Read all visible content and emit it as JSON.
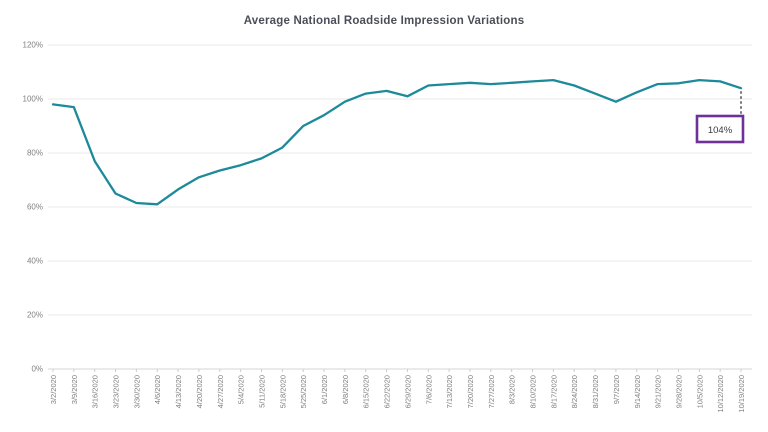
{
  "title": "Average National Roadside Impression Variations",
  "annotation": {
    "label": "104%"
  },
  "colors": {
    "line": "#1d8a9a",
    "grid": "#e9e9e9",
    "axis_line": "#d6d6d6",
    "tick": "#cccccc",
    "axis_text": "#808080",
    "title_text": "#4a4e57",
    "annotation_border": "#6d3198",
    "annotation_text": "#3a3a3a",
    "callout_line": "#4d4d4d",
    "background": "#ffffff"
  },
  "chart_data": {
    "type": "line",
    "title": "Average National Roadside Impression Variations",
    "xlabel": "",
    "ylabel": "",
    "ylim": [
      0,
      120
    ],
    "yticks": [
      0,
      20,
      40,
      60,
      80,
      100,
      120
    ],
    "ytick_labels": [
      "0%",
      "20%",
      "40%",
      "60%",
      "80%",
      "100%",
      "120%"
    ],
    "grid": true,
    "legend_position": "none",
    "x": [
      "3/2/2020",
      "3/9/2020",
      "3/16/2020",
      "3/23/2020",
      "3/30/2020",
      "4/6/2020",
      "4/13/2020",
      "4/20/2020",
      "4/27/2020",
      "5/4/2020",
      "5/11/2020",
      "5/18/2020",
      "5/25/2020",
      "6/1/2020",
      "6/8/2020",
      "6/15/2020",
      "6/22/2020",
      "6/29/2020",
      "7/6/2020",
      "7/13/2020",
      "7/20/2020",
      "7/27/2020",
      "8/3/2020",
      "8/10/2020",
      "8/17/2020",
      "8/24/2020",
      "8/31/2020",
      "9/7/2020",
      "9/14/2020",
      "9/21/2020",
      "9/28/2020",
      "10/5/2020",
      "10/12/2020",
      "10/19/2020"
    ],
    "series": [
      {
        "name": "Average National Roadside Impression Variations",
        "values": [
          98,
          97,
          77,
          65,
          61.5,
          61,
          66.5,
          71,
          73.5,
          75.5,
          78,
          82,
          90,
          94,
          99,
          102,
          103,
          101,
          105,
          105.5,
          106,
          105.5,
          106,
          106.5,
          107,
          105,
          102,
          99,
          102.5,
          105.5,
          105.8,
          107,
          106.5,
          104
        ]
      }
    ],
    "annotation": {
      "x": "10/19/2020",
      "value": 104,
      "text": "104%"
    }
  }
}
